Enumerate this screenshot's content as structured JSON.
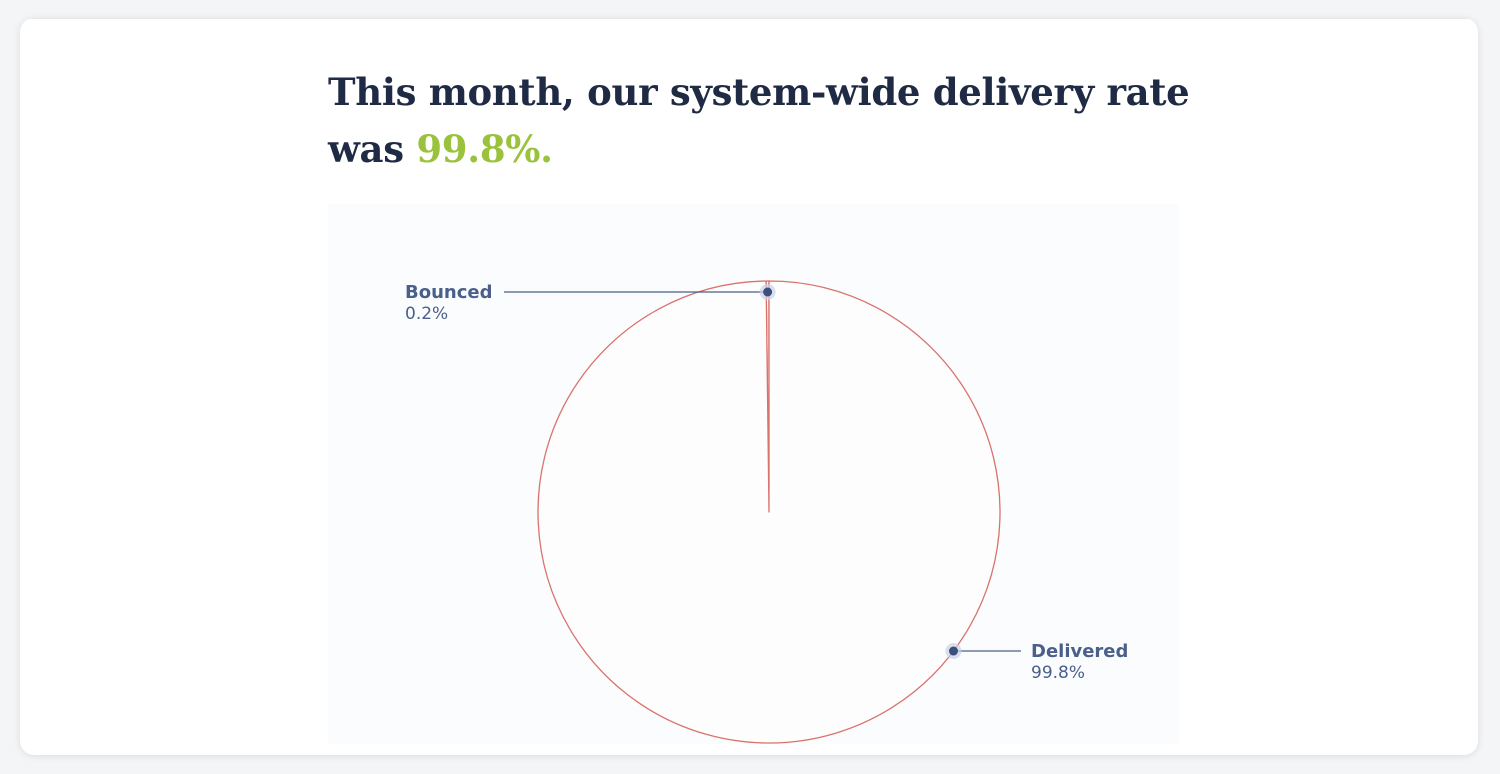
{
  "headline": {
    "text_before": "This month, our system-wide delivery rate was ",
    "highlight": "99.8%."
  },
  "colors": {
    "headline": "#1f2a44",
    "highlight": "#9ac23c",
    "slice_stroke": "#d9726b",
    "leader": "#4a5f8a",
    "marker": "#3b4f7d",
    "label": "#4a5f8a"
  },
  "chart_data": {
    "type": "pie",
    "slices": [
      {
        "label": "Bounced",
        "value": 0.2,
        "value_label": "0.2%"
      },
      {
        "label": "Delivered",
        "value": 99.8,
        "value_label": "99.8%"
      }
    ]
  }
}
